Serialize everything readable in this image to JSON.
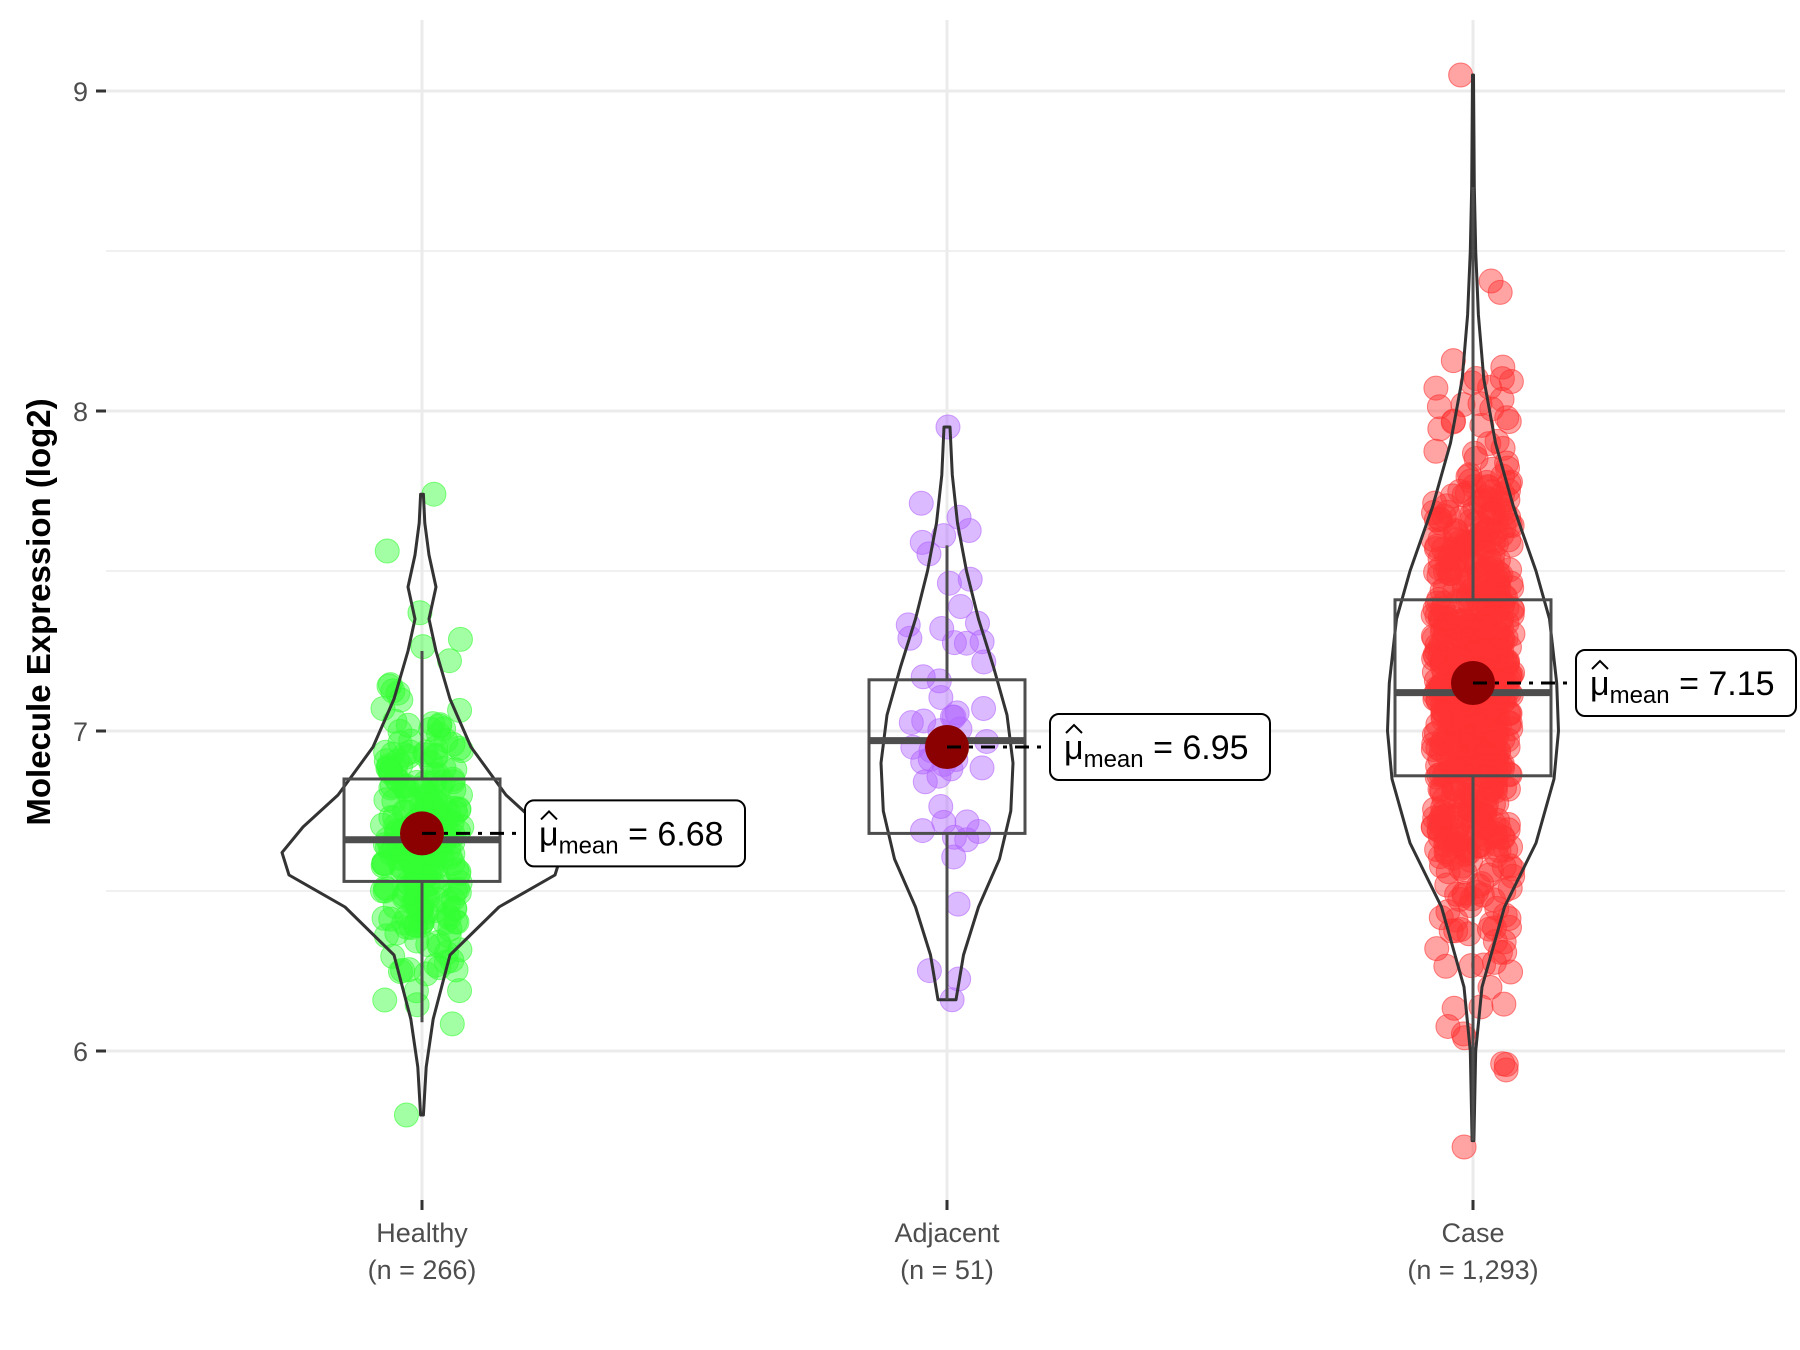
{
  "chart_data": {
    "type": "violin-box-jitter",
    "title": "",
    "xlabel": "",
    "ylabel": "Molecule Expression (log2)",
    "ylim": [
      5.55,
      9.15
    ],
    "yticks": [
      6,
      7,
      8,
      9
    ],
    "ytick_labels": [
      "6",
      "7",
      "8",
      "9"
    ],
    "grid": true,
    "categories": [
      "Healthy",
      "Adjacent",
      "Case"
    ],
    "category_labels": [
      {
        "name": "Healthy",
        "n": "(n = 266)"
      },
      {
        "name": "Adjacent",
        "n": "(n = 51)"
      },
      {
        "name": "Case",
        "n": "(n = 1,293)"
      }
    ],
    "groups": [
      {
        "name": "Healthy",
        "n": 266,
        "color": "#33ff33",
        "mean": 6.68,
        "mean_label": "6.68",
        "q1": 6.53,
        "median": 6.66,
        "q3": 6.85,
        "whisker_low": 6.09,
        "whisker_high": 7.25,
        "violin": [
          [
            5.8,
            0.01
          ],
          [
            5.95,
            0.03
          ],
          [
            6.1,
            0.08
          ],
          [
            6.3,
            0.2
          ],
          [
            6.45,
            0.55
          ],
          [
            6.55,
            0.95
          ],
          [
            6.62,
            1.0
          ],
          [
            6.7,
            0.85
          ],
          [
            6.8,
            0.6
          ],
          [
            6.95,
            0.35
          ],
          [
            7.1,
            0.2
          ],
          [
            7.25,
            0.1
          ],
          [
            7.35,
            0.05
          ],
          [
            7.45,
            0.1
          ],
          [
            7.55,
            0.05
          ],
          [
            7.65,
            0.02
          ],
          [
            7.74,
            0.01
          ]
        ],
        "points_range": [
          5.8,
          7.74
        ]
      },
      {
        "name": "Adjacent",
        "n": 51,
        "color": "#b266ff",
        "mean": 6.95,
        "mean_label": "6.95",
        "q1": 6.68,
        "median": 6.97,
        "q3": 7.16,
        "whisker_low": 6.16,
        "whisker_high": 7.58,
        "violin": [
          [
            6.16,
            0.12
          ],
          [
            6.3,
            0.22
          ],
          [
            6.45,
            0.42
          ],
          [
            6.6,
            0.7
          ],
          [
            6.75,
            0.85
          ],
          [
            6.9,
            0.88
          ],
          [
            7.05,
            0.8
          ],
          [
            7.2,
            0.62
          ],
          [
            7.35,
            0.42
          ],
          [
            7.5,
            0.26
          ],
          [
            7.65,
            0.14
          ],
          [
            7.8,
            0.07
          ],
          [
            7.95,
            0.04
          ]
        ],
        "points_range": [
          6.16,
          7.95
        ]
      },
      {
        "name": "Case",
        "n": 1293,
        "color": "#ff3333",
        "mean": 7.15,
        "mean_label": "7.15",
        "q1": 6.86,
        "median": 7.12,
        "q3": 7.41,
        "whisker_low": 5.72,
        "whisker_high": 8.7,
        "violin": [
          [
            5.72,
            0.01
          ],
          [
            6.0,
            0.03
          ],
          [
            6.2,
            0.1
          ],
          [
            6.45,
            0.35
          ],
          [
            6.65,
            0.7
          ],
          [
            6.85,
            0.9
          ],
          [
            7.0,
            0.95
          ],
          [
            7.15,
            0.93
          ],
          [
            7.35,
            0.85
          ],
          [
            7.5,
            0.7
          ],
          [
            7.7,
            0.45
          ],
          [
            7.9,
            0.25
          ],
          [
            8.1,
            0.12
          ],
          [
            8.3,
            0.06
          ],
          [
            8.5,
            0.03
          ],
          [
            8.7,
            0.015
          ],
          [
            9.05,
            0.005
          ]
        ],
        "points_range": [
          5.7,
          9.05
        ]
      }
    ],
    "mean_symbol": "μ",
    "mean_subscript": "mean",
    "mean_equals": "="
  }
}
